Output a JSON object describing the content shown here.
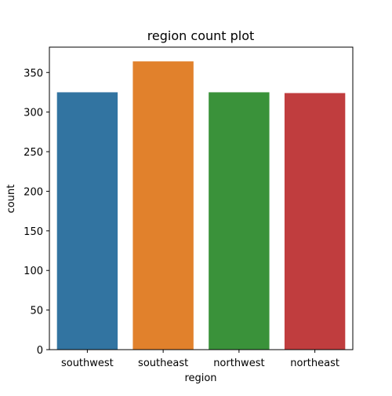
{
  "chart_data": {
    "type": "bar",
    "title": "region count plot",
    "xlabel": "region",
    "ylabel": "count",
    "categories": [
      "southwest",
      "southeast",
      "northwest",
      "northeast"
    ],
    "values": [
      325,
      364,
      325,
      324
    ],
    "colors": [
      "#3274a1",
      "#e1812c",
      "#3a923a",
      "#c03d3e"
    ],
    "ylim": [
      0,
      382
    ],
    "yticks": [
      0,
      50,
      100,
      150,
      200,
      250,
      300,
      350
    ],
    "grid": false,
    "legend": "none"
  }
}
